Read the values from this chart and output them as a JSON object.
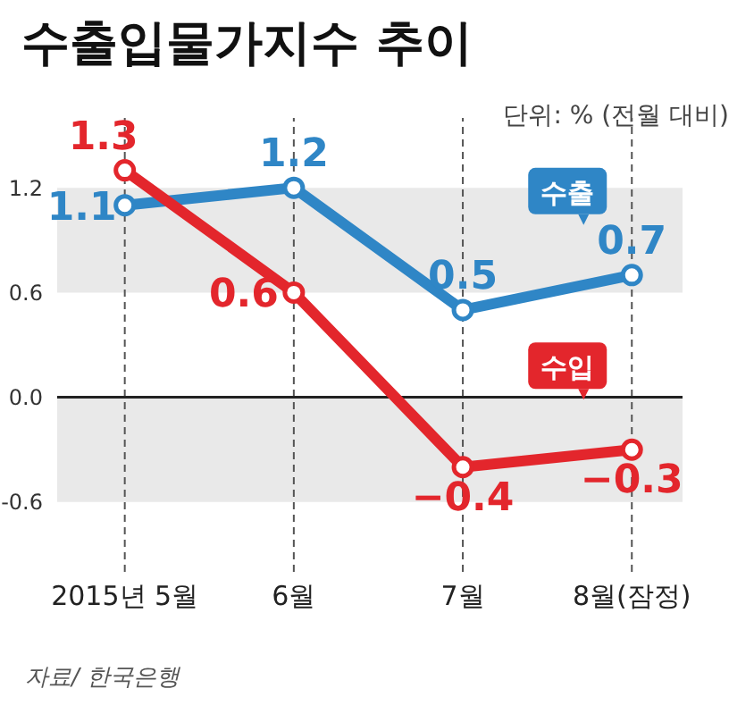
{
  "chart_data": {
    "type": "line",
    "title": "수출입물가지수 추이",
    "subtitle": "단위: % (전월 대비)",
    "annotations": [
      "자료/ 한국은행"
    ],
    "categories": [
      "2015년 5월",
      "6월",
      "7월",
      "8월(잠정)"
    ],
    "series": [
      {
        "name": "수출",
        "color": "#2f86c6",
        "values": [
          1.1,
          1.2,
          0.5,
          0.7
        ],
        "value_labels": [
          "1.1",
          "1.2",
          "0.5",
          "0.7"
        ]
      },
      {
        "name": "수입",
        "color": "#e3262c",
        "values": [
          1.3,
          0.6,
          -0.4,
          -0.3
        ],
        "value_labels": [
          "1.3",
          "0.6",
          "−0.4",
          "−0.3"
        ]
      }
    ],
    "ylim": [
      -1.0,
      1.6
    ],
    "yticks": [
      {
        "value": -0.6,
        "label": "-0.6"
      },
      {
        "value": 0,
        "label": "0.0"
      },
      0.6,
      1.2
    ],
    "bands": [
      {
        "axis": "y",
        "from": 0.6,
        "to": 1.2,
        "color": "#e9e9e9"
      },
      {
        "axis": "y",
        "from": -0.6,
        "to": 0,
        "color": "#e9e9e9"
      }
    ],
    "ref_lines": [
      {
        "axis": "y",
        "value": 0,
        "color": "#222222"
      }
    ],
    "grid": "x",
    "legend": false,
    "marker": "circle",
    "line_style": "solid"
  }
}
